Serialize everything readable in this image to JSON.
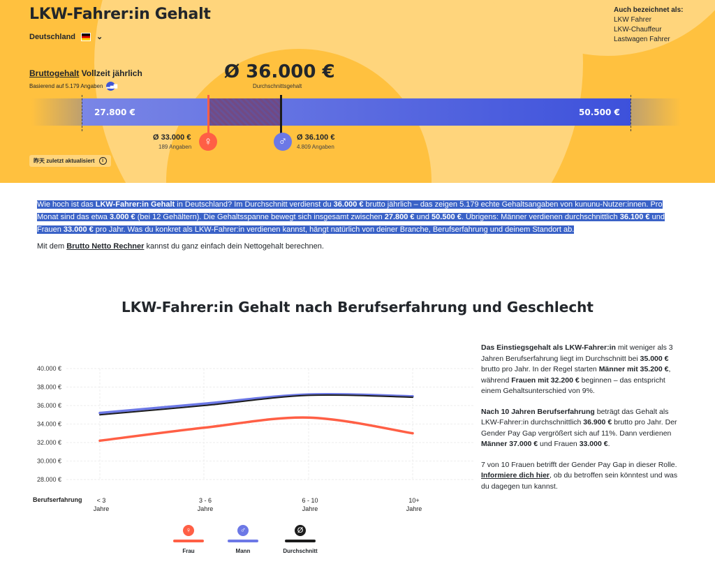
{
  "header": {
    "title": "LKW-Fahrer:in Gehalt",
    "country": "Deutschland",
    "aka_title": "Auch bezeichnet als:",
    "aka": [
      "LKW Fahrer",
      "LKW-Chauffeur",
      "Lastwagen Fahrer"
    ],
    "brutto_link": "Bruttogehalt",
    "brutto_rest": "Vollzeit jährlich",
    "basis": "Basierend auf 5.179 Angaben",
    "avg": "Ø 36.000 €",
    "avg_label": "Durchschnittsgehalt",
    "min": "27.800 €",
    "max": "50.500 €",
    "female_avg": "Ø 33.000 €",
    "female_count": "189 Angaben",
    "male_avg": "Ø 36.100 €",
    "male_count": "4.809 Angaben",
    "updated": "昨天 zuletzt aktualisiert",
    "range": {
      "min": 27800,
      "max": 50500,
      "avg": 36000,
      "female": 33000,
      "male": 36100
    }
  },
  "intro": {
    "parts": [
      "Wie hoch ist das ",
      "LKW-Fahrer:in Gehalt",
      " in Deutschland? Im Durchschnitt verdienst du ",
      "36.000 €",
      " brutto jährlich – das zeigen 5.179 echte Gehaltsangaben von kununu-Nutzer:innen. Pro Monat sind das etwa ",
      "3.000 €",
      " (bei 12 Gehältern). Die Gehaltsspanne bewegt sich insgesamt zwischen ",
      "27.800 €",
      " und ",
      "50.500 €",
      ". Übrigens: Männer verdienen durchschnittlich ",
      "36.100 €",
      " und Frauen ",
      "33.000 €",
      " pro Jahr. Was du konkret als LKW-Fahrer:in verdienen kannst, hängt natürlich von deiner Branche, Berufserfahrung und deinem Standort ab."
    ],
    "rechner_pre": "Mit dem ",
    "rechner_link": "Brutto Netto Rechner",
    "rechner_post": " kannst du ganz einfach dein Nettogehalt berechnen."
  },
  "section_title": "LKW-Fahrer:in Gehalt nach Berufserfahrung und Geschlecht",
  "side": {
    "p1": [
      "Das Einstiegsgehalt als LKW-Fahrer:in",
      " mit weniger als 3 Jahren Berufserfahrung liegt im Durchschnitt bei ",
      "35.000 €",
      " brutto pro Jahr. In der Regel starten ",
      "Männer mit 35.200 €",
      ", während ",
      "Frauen mit 32.200 €",
      " beginnen – das entspricht einem Gehaltsunterschied von 9%."
    ],
    "p2": [
      "Nach 10 Jahren Berufserfahrung",
      " beträgt das Gehalt als LKW-Fahrer:in durchschnittlich ",
      "36.900 €",
      " brutto pro Jahr. Der Gender Pay Gap vergrößert sich auf 11%. Dann verdienen ",
      "Männer 37.000 €",
      " und Frauen ",
      "33.000 €",
      "."
    ],
    "p3": [
      "7 von 10 Frauen betrifft der Gender Pay Gap in dieser Rolle. ",
      "Informiere dich hier",
      ", ob du betroffen sein könntest und was du dagegen tun kannst."
    ]
  },
  "chart_data": {
    "type": "line",
    "xlabel": "Berufserfahrung",
    "categories": [
      [
        "< 3",
        "Jahre"
      ],
      [
        "3 - 6",
        "Jahre"
      ],
      [
        "6 - 10",
        "Jahre"
      ],
      [
        "10+",
        "Jahre"
      ]
    ],
    "yticks": [
      "28.000 €",
      "30.000 €",
      "32.000 €",
      "34.000 €",
      "36.000 €",
      "38.000 €",
      "40.000 €"
    ],
    "ylim": [
      28000,
      40000
    ],
    "series": [
      {
        "name": "Frau",
        "icon": "♀",
        "color": "#ff5f45",
        "values": [
          32200,
          33600,
          34700,
          33000
        ]
      },
      {
        "name": "Mann",
        "icon": "♂",
        "color": "#6c78e6",
        "values": [
          35200,
          36200,
          37200,
          37000
        ]
      },
      {
        "name": "Durchschnitt",
        "icon": "Ø",
        "color": "#1c1c1c",
        "values": [
          35000,
          36000,
          37100,
          36900
        ]
      }
    ]
  }
}
